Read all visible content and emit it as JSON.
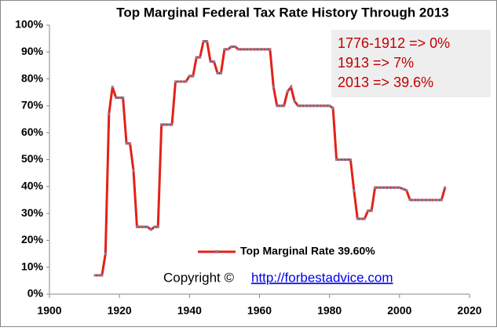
{
  "chart_data": {
    "type": "line",
    "title": "Top Marginal Federal Tax Rate History Through 2013",
    "x": [
      1913,
      1914,
      1915,
      1916,
      1917,
      1918,
      1919,
      1920,
      1921,
      1922,
      1923,
      1924,
      1925,
      1926,
      1927,
      1928,
      1929,
      1930,
      1931,
      1932,
      1933,
      1934,
      1935,
      1936,
      1937,
      1938,
      1939,
      1940,
      1941,
      1942,
      1943,
      1944,
      1945,
      1946,
      1947,
      1948,
      1949,
      1950,
      1951,
      1952,
      1953,
      1954,
      1955,
      1956,
      1957,
      1958,
      1959,
      1960,
      1961,
      1962,
      1963,
      1964,
      1965,
      1966,
      1967,
      1968,
      1969,
      1970,
      1971,
      1972,
      1973,
      1974,
      1975,
      1976,
      1977,
      1978,
      1979,
      1980,
      1981,
      1982,
      1983,
      1984,
      1985,
      1986,
      1987,
      1988,
      1989,
      1990,
      1991,
      1992,
      1993,
      1994,
      1995,
      1996,
      1997,
      1998,
      1999,
      2000,
      2001,
      2002,
      2003,
      2004,
      2005,
      2006,
      2007,
      2008,
      2009,
      2010,
      2011,
      2012,
      2013
    ],
    "series": [
      {
        "name": "Top Marginal Rate 39.60%",
        "color": "#e32119",
        "marker_color": "#7f7f9f",
        "values": [
          7,
          7,
          7,
          15,
          67,
          77,
          73,
          73,
          73,
          56,
          56,
          46,
          25,
          25,
          25,
          25,
          24,
          25,
          25,
          63,
          63,
          63,
          63,
          79,
          79,
          79,
          79,
          81.1,
          81,
          88,
          88,
          94,
          94,
          86.45,
          86.45,
          82.13,
          82.13,
          91,
          91,
          92,
          92,
          91,
          91,
          91,
          91,
          91,
          91,
          91,
          91,
          91,
          91,
          77,
          70,
          70,
          70,
          75.25,
          77,
          71.75,
          70,
          70,
          70,
          70,
          70,
          70,
          70,
          70,
          70,
          70,
          69.13,
          50,
          50,
          50,
          50,
          50,
          38.5,
          28,
          28,
          28,
          31,
          31,
          39.6,
          39.6,
          39.6,
          39.6,
          39.6,
          39.6,
          39.6,
          39.6,
          39.1,
          38.6,
          35,
          35,
          35,
          35,
          35,
          35,
          35,
          35,
          35,
          35,
          39.6
        ]
      }
    ],
    "xlim": [
      1900,
      2020
    ],
    "xticks": [
      1900,
      1920,
      1940,
      1960,
      1980,
      2000,
      2020
    ],
    "ylim": [
      0,
      100
    ],
    "yticks": [
      {
        "value": 0,
        "label": "0%"
      },
      {
        "value": 10,
        "label": "10%"
      },
      {
        "value": 20,
        "label": "20%"
      },
      {
        "value": 30,
        "label": "30%"
      },
      {
        "value": 40,
        "label": "40%"
      },
      {
        "value": 50,
        "label": "50%"
      },
      {
        "value": 60,
        "label": "60%"
      },
      {
        "value": 70,
        "label": "70%"
      },
      {
        "value": 80,
        "label": "80%"
      },
      {
        "value": 90,
        "label": "90%"
      },
      {
        "value": 100,
        "label": "100%"
      }
    ],
    "annotations": [
      "1776-1912 => 0%",
      "1913 => 7%",
      "2013 => 39.6%"
    ],
    "copyright": {
      "text": "Copyright ©",
      "link": "http://forbestadvice.com"
    }
  }
}
